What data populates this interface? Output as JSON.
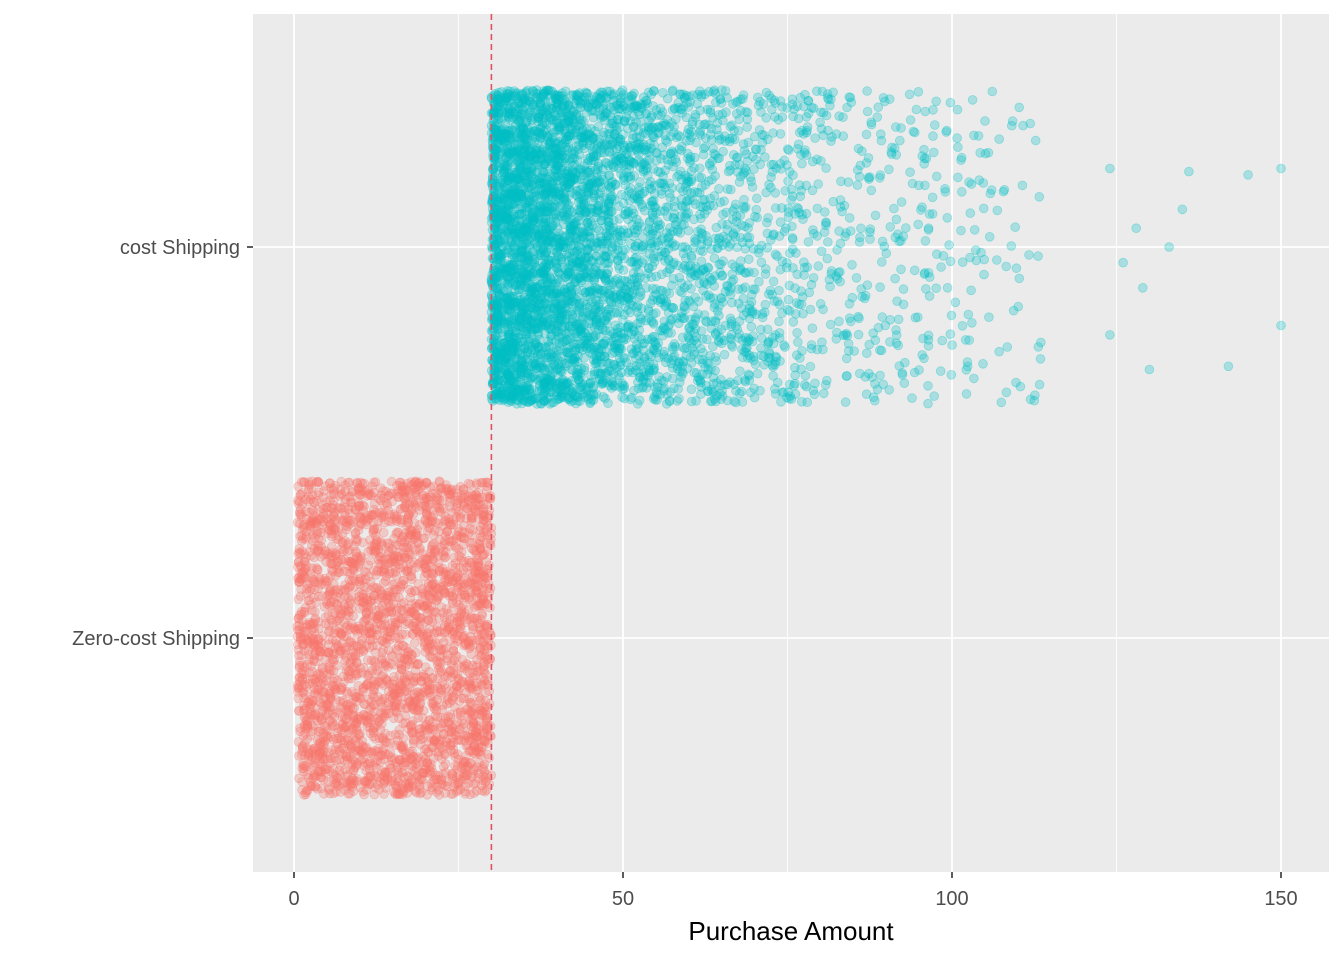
{
  "chart_data": {
    "type": "scatter",
    "subtype": "jitter strip plot",
    "title": "",
    "xlabel": "Purchase Amount",
    "ylabel": "",
    "xlim": [
      -6,
      158
    ],
    "x_ticks": [
      0,
      50,
      100,
      150
    ],
    "x_tick_labels": [
      "0",
      "50",
      "100",
      "150"
    ],
    "categories": [
      "Zero-cost Shipping",
      "cost Shipping"
    ],
    "grid": true,
    "legend": "none",
    "reference_line": {
      "x": 30,
      "style": "dashed",
      "color": "#e05260"
    },
    "series": [
      {
        "category": "Zero-cost Shipping",
        "color": "#f8766d",
        "x_range": [
          0.5,
          30
        ],
        "distribution": "approximately uniform",
        "approx_count": 3000
      },
      {
        "category": "cost Shipping",
        "color": "#00bfc4",
        "x_range": [
          30,
          150
        ],
        "distribution": "right-skewed, densest between 30 and 60, sparse above 110",
        "approx_count": 5000,
        "outliers": [
          [
            150,
            0.25
          ],
          [
            150,
            -0.25
          ],
          [
            145,
            0.23
          ],
          [
            142,
            -0.38
          ],
          [
            136,
            0.24
          ],
          [
            135,
            0.12
          ],
          [
            133,
            0.0
          ],
          [
            130,
            -0.39
          ],
          [
            129,
            -0.13
          ],
          [
            128,
            0.06
          ],
          [
            126,
            -0.05
          ],
          [
            124,
            -0.28
          ],
          [
            124,
            0.25
          ]
        ]
      }
    ]
  }
}
